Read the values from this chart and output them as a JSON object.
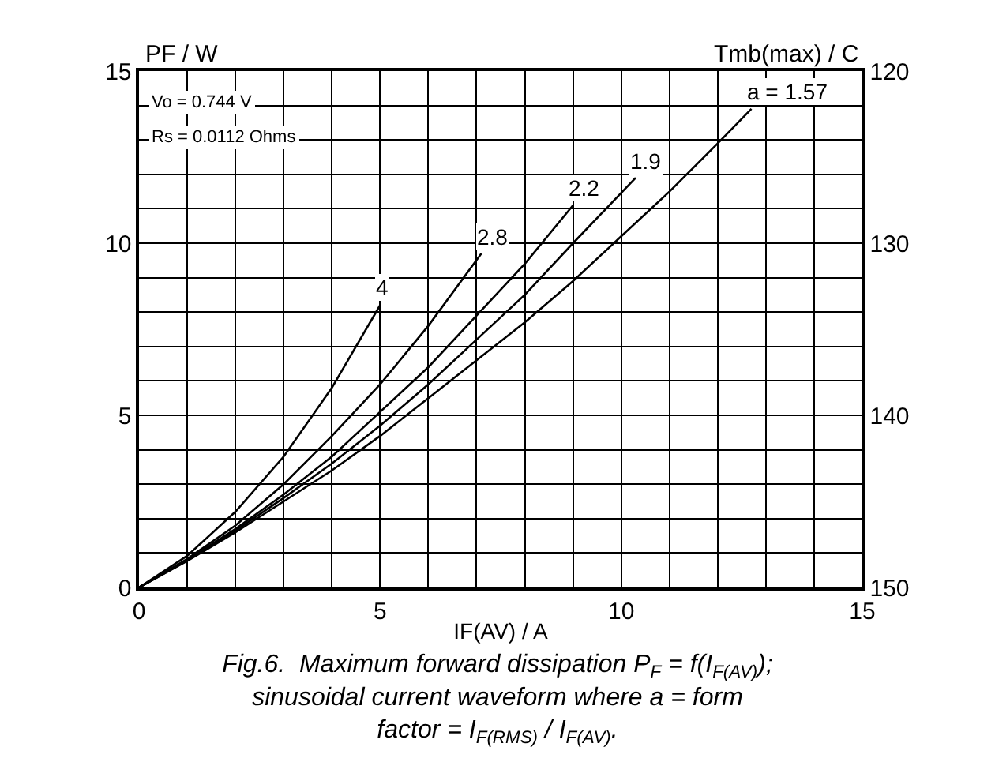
{
  "chart_data": {
    "type": "line",
    "title": "Fig.6.  Maximum forward dissipation P$_{F}$ = f(I$_{F(AV)}$);\nsinusoidal current waveform where a = form\nfactor = I$_{F(RMS)}$ / I$_{F(AV)}$.",
    "xlabel": "IF(AV) / A",
    "ylabel": "PF / W",
    "y2label": "Tmb(max) / C",
    "annotations": [
      "Vo = 0.744 V",
      "Rs = 0.0112 Ohms"
    ],
    "series": [
      {
        "name": "4",
        "color": "#000000",
        "x": [
          0,
          1,
          2,
          3,
          4,
          5
        ],
        "values": [
          0,
          0.92,
          2.2,
          3.8,
          5.8,
          8.2
        ]
      },
      {
        "name": "2.8",
        "color": "#000000",
        "x": [
          0,
          1,
          2,
          3,
          4,
          5,
          6,
          7.1
        ],
        "values": [
          0,
          0.83,
          1.8,
          3.0,
          4.4,
          5.9,
          7.6,
          9.7
        ]
      },
      {
        "name": "2.2",
        "color": "#000000",
        "x": [
          0,
          1,
          2,
          3,
          4,
          5,
          6,
          7,
          8,
          9
        ],
        "values": [
          0,
          0.8,
          1.7,
          2.7,
          3.8,
          5.1,
          6.4,
          7.9,
          9.4,
          11.1
        ]
      },
      {
        "name": "1.9",
        "color": "#000000",
        "x": [
          0,
          1,
          2,
          3,
          4,
          5,
          6,
          7,
          8,
          9,
          10.3
        ],
        "values": [
          0,
          0.78,
          1.65,
          2.6,
          3.6,
          4.7,
          5.9,
          7.2,
          8.5,
          10.0,
          11.9
        ]
      },
      {
        "name": "a = 1.57",
        "color": "#000000",
        "x": [
          0,
          1,
          2,
          3,
          4,
          5,
          6,
          7,
          8,
          9,
          10,
          11,
          12,
          12.7
        ],
        "values": [
          0,
          0.77,
          1.6,
          2.5,
          3.4,
          4.4,
          5.5,
          6.6,
          7.7,
          8.9,
          10.2,
          11.5,
          12.9,
          13.9
        ]
      }
    ],
    "xlim": [
      0,
      15
    ],
    "ylim": [
      0,
      15
    ],
    "y2lim": [
      150,
      120
    ],
    "xticks": [
      0,
      {
        "value": 1,
        "label": null
      },
      {
        "value": 2,
        "label": null
      },
      {
        "value": 3,
        "label": null
      },
      {
        "value": 4,
        "label": null
      },
      5,
      {
        "value": 6,
        "label": null
      },
      {
        "value": 7,
        "label": null
      },
      {
        "value": 8,
        "label": null
      },
      {
        "value": 9,
        "label": null
      },
      10,
      {
        "value": 11,
        "label": null
      },
      {
        "value": 12,
        "label": null
      },
      {
        "value": 13,
        "label": null
      },
      {
        "value": 14,
        "label": null
      },
      15
    ],
    "yticks": [
      0,
      {
        "value": 1,
        "label": null
      },
      {
        "value": 2,
        "label": null
      },
      {
        "value": 3,
        "label": null
      },
      {
        "value": 4,
        "label": null
      },
      5,
      {
        "value": 6,
        "label": null
      },
      {
        "value": 7,
        "label": null
      },
      {
        "value": 8,
        "label": null
      },
      {
        "value": 9,
        "label": null
      },
      10,
      {
        "value": 11,
        "label": null
      },
      {
        "value": 12,
        "label": null
      },
      {
        "value": 13,
        "label": null
      },
      {
        "value": 14,
        "label": null
      },
      15
    ],
    "y2ticks": [
      120,
      130,
      140,
      150
    ],
    "grid": true,
    "legend": false,
    "marker": "none",
    "line_style": "solid"
  }
}
